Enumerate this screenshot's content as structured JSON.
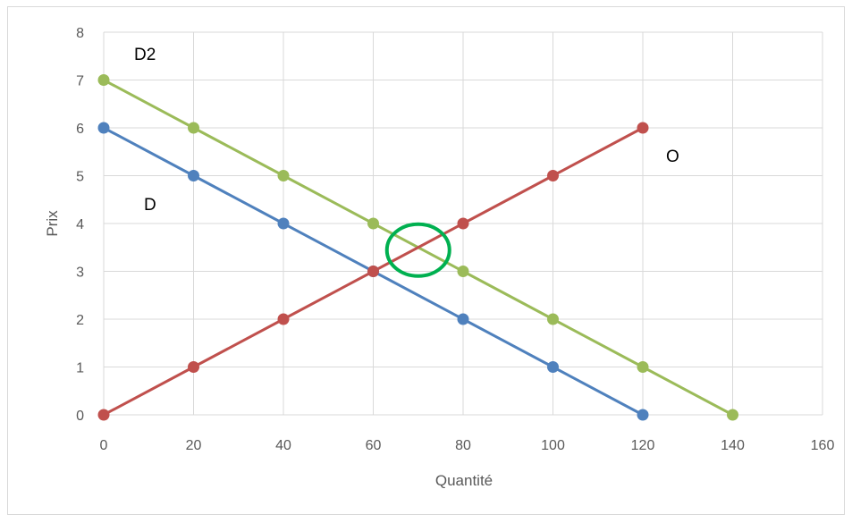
{
  "chart_data": {
    "type": "line",
    "xlabel": "Quantité",
    "ylabel": "Prix",
    "xlim": [
      0,
      160
    ],
    "ylim": [
      0,
      8
    ],
    "xticks": [
      0,
      20,
      40,
      60,
      80,
      100,
      120,
      140,
      160
    ],
    "yticks": [
      0,
      1,
      2,
      3,
      4,
      5,
      6,
      7,
      8
    ],
    "grid": true,
    "legend": "none",
    "series": [
      {
        "name": "D",
        "color": "#4f81bd",
        "x": [
          0,
          20,
          40,
          60,
          80,
          100,
          120
        ],
        "y": [
          6,
          5,
          4,
          3,
          2,
          1,
          0
        ]
      },
      {
        "name": "D2",
        "color": "#9bbb59",
        "x": [
          0,
          20,
          40,
          60,
          80,
          100,
          120,
          140
        ],
        "y": [
          7,
          6,
          5,
          4,
          3,
          2,
          1,
          0
        ]
      },
      {
        "name": "O",
        "color": "#c0504d",
        "x": [
          0,
          20,
          40,
          60,
          80,
          100,
          120
        ],
        "y": [
          0,
          1,
          2,
          3,
          4,
          5,
          6
        ]
      }
    ],
    "annotations": [
      {
        "type": "circle",
        "x": 70,
        "y": 3.5,
        "color": "#00b050"
      }
    ]
  }
}
